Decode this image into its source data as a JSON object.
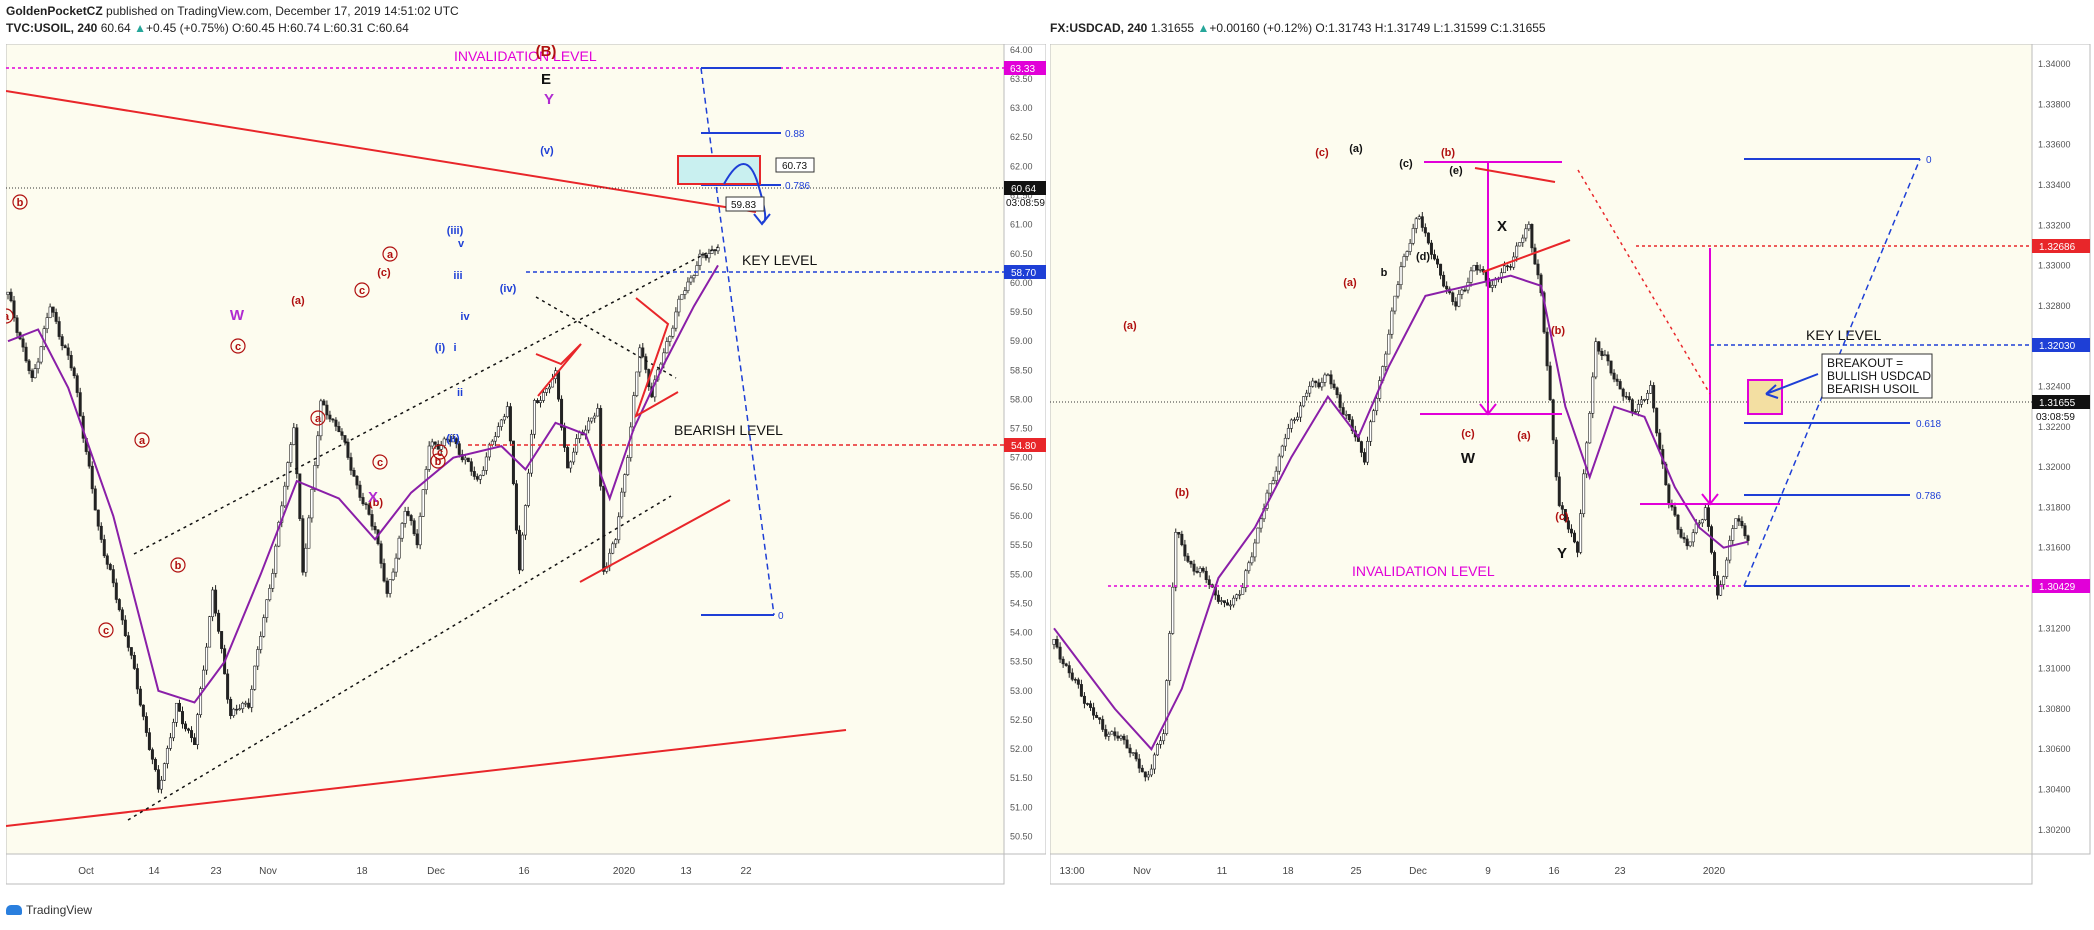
{
  "header": {
    "author": "GoldenPocketCZ",
    "published": "published on TradingView.com, December 17, 2019 14:51:02 UTC",
    "left_symbol": "TVC:USOIL, 240",
    "left_last": "60.64",
    "left_change": "+0.45 (+0.75%)",
    "left_ohlc": "O:60.45 H:60.74 L:60.31 C:60.64",
    "right_symbol": "FX:USDCAD, 240",
    "right_last": "1.31655",
    "right_change": "+0.00160 (+0.12%)",
    "right_ohlc": "O:1.31743 H:1.31749 L:1.31599 C:1.31655"
  },
  "footer": {
    "brand": "TradingView"
  },
  "colors": {
    "bg": "#fdfcef",
    "red": "#e8262a",
    "magenta": "#e100d8",
    "blue": "#1e3fd6",
    "purple": "#8a1fa8",
    "darkred": "#b01010"
  },
  "chart_data": [
    {
      "type": "candlestick",
      "symbol": "TVC:USOIL",
      "timeframe": "240",
      "x_ticks": [
        "Oct",
        "14",
        "23",
        "Nov",
        "18",
        "Dec",
        "16",
        "2020",
        "13",
        "22"
      ],
      "y_ticks": [
        "64.00",
        "63.50",
        "63.00",
        "62.50",
        "62.00",
        "61.50",
        "61.00",
        "60.50",
        "60.00",
        "59.50",
        "59.00",
        "58.50",
        "58.00",
        "57.50",
        "57.00",
        "56.50",
        "56.00",
        "55.50",
        "55.00",
        "54.50",
        "54.00",
        "53.50",
        "53.00",
        "52.50",
        "52.00",
        "51.50",
        "51.00",
        "50.50"
      ],
      "ylim": [
        50.2,
        64.1
      ],
      "price_path": [
        [
          0,
          59.8
        ],
        [
          8,
          58.3
        ],
        [
          14,
          59.6
        ],
        [
          22,
          58.4
        ],
        [
          30,
          55.8
        ],
        [
          40,
          53.8
        ],
        [
          50,
          51.3
        ],
        [
          56,
          52.7
        ],
        [
          62,
          52.1
        ],
        [
          68,
          54.7
        ],
        [
          74,
          52.6
        ],
        [
          80,
          52.8
        ],
        [
          88,
          55.1
        ],
        [
          95,
          57.6
        ],
        [
          98,
          55.0
        ],
        [
          104,
          57.9
        ],
        [
          110,
          57.5
        ],
        [
          118,
          56.2
        ],
        [
          122,
          55.8
        ],
        [
          126,
          54.6
        ],
        [
          132,
          56.1
        ],
        [
          136,
          55.6
        ],
        [
          140,
          57.2
        ],
        [
          148,
          57.3
        ],
        [
          156,
          56.6
        ],
        [
          162,
          57.4
        ],
        [
          166,
          57.9
        ],
        [
          170,
          55.1
        ],
        [
          175,
          57.9
        ],
        [
          182,
          58.4
        ],
        [
          186,
          56.8
        ],
        [
          190,
          57.4
        ],
        [
          196,
          57.8
        ],
        [
          198,
          55.1
        ],
        [
          202,
          55.6
        ],
        [
          206,
          57.1
        ],
        [
          210,
          58.9
        ],
        [
          214,
          58.1
        ],
        [
          218,
          58.8
        ],
        [
          224,
          59.8
        ],
        [
          230,
          60.4
        ],
        [
          236,
          60.64
        ]
      ],
      "ma_path": [
        [
          0,
          59.0
        ],
        [
          10,
          59.2
        ],
        [
          20,
          58.2
        ],
        [
          35,
          56.0
        ],
        [
          50,
          53.0
        ],
        [
          62,
          52.8
        ],
        [
          72,
          53.5
        ],
        [
          84,
          55.0
        ],
        [
          96,
          56.6
        ],
        [
          110,
          56.3
        ],
        [
          122,
          55.6
        ],
        [
          134,
          56.4
        ],
        [
          148,
          57.0
        ],
        [
          164,
          57.2
        ],
        [
          172,
          56.8
        ],
        [
          182,
          57.6
        ],
        [
          192,
          57.4
        ],
        [
          200,
          56.3
        ],
        [
          208,
          57.5
        ],
        [
          218,
          58.6
        ],
        [
          228,
          59.6
        ],
        [
          236,
          60.3
        ]
      ],
      "last_price": "60.64",
      "countdown": "03:08:59",
      "levels": [
        {
          "label": "INVALIDATION LEVEL",
          "value": "63.33"
        },
        {
          "label": "KEY LEVEL",
          "value": "58.70"
        },
        {
          "label": "BEARISH LEVEL",
          "value": "54.80"
        }
      ],
      "fib_labels": [
        "0.88",
        "0.786",
        "0"
      ],
      "callouts": [
        "60.73",
        "59.83"
      ],
      "waves_red": [
        "(B)",
        "b",
        "a",
        "a",
        "c",
        "(a)",
        "a",
        "c",
        "b",
        "c",
        "(c)",
        "a",
        "(b)",
        "c",
        "b",
        "c"
      ],
      "waves_black": [
        "E"
      ],
      "waves_purple": [
        "W",
        "X",
        "Y"
      ],
      "waves_blue": [
        "(v)",
        "(iii)",
        "v",
        "iii",
        "iv",
        "(iv)",
        "(i)",
        "i",
        "ii",
        "(ii)"
      ]
    },
    {
      "type": "candlestick",
      "symbol": "FX:USDCAD",
      "timeframe": "240",
      "x_ticks": [
        "13:00",
        "Nov",
        "11",
        "18",
        "25",
        "Dec",
        "9",
        "16",
        "23",
        "2020"
      ],
      "y_ticks": [
        "1.34000",
        "1.33800",
        "1.33600",
        "1.33400",
        "1.33200",
        "1.33000",
        "1.32800",
        "1.32600",
        "1.32400",
        "1.32200",
        "1.32000",
        "1.31800",
        "1.31600",
        "1.31400",
        "1.31200",
        "1.31000",
        "1.30800",
        "1.30600",
        "1.30400",
        "1.30200"
      ],
      "ylim": [
        1.3008,
        1.341
      ],
      "price_path": [
        [
          0,
          1.3112
        ],
        [
          8,
          1.309
        ],
        [
          16,
          1.307
        ],
        [
          24,
          1.3063
        ],
        [
          30,
          1.3045
        ],
        [
          36,
          1.3068
        ],
        [
          40,
          1.3168
        ],
        [
          44,
          1.3153
        ],
        [
          50,
          1.3145
        ],
        [
          56,
          1.313
        ],
        [
          62,
          1.314
        ],
        [
          68,
          1.3175
        ],
        [
          76,
          1.3215
        ],
        [
          84,
          1.324
        ],
        [
          90,
          1.3245
        ],
        [
          96,
          1.3225
        ],
        [
          102,
          1.3205
        ],
        [
          108,
          1.325
        ],
        [
          114,
          1.33
        ],
        [
          120,
          1.3325
        ],
        [
          126,
          1.3298
        ],
        [
          132,
          1.328
        ],
        [
          138,
          1.33
        ],
        [
          144,
          1.329
        ],
        [
          150,
          1.3302
        ],
        [
          156,
          1.332
        ],
        [
          160,
          1.3285
        ],
        [
          166,
          1.318
        ],
        [
          172,
          1.316
        ],
        [
          178,
          1.3262
        ],
        [
          184,
          1.3245
        ],
        [
          190,
          1.3228
        ],
        [
          196,
          1.3238
        ],
        [
          202,
          1.3182
        ],
        [
          208,
          1.316
        ],
        [
          214,
          1.318
        ],
        [
          218,
          1.3135
        ],
        [
          224,
          1.3175
        ],
        [
          228,
          1.31655
        ]
      ],
      "ma_path": [
        [
          0,
          1.312
        ],
        [
          10,
          1.31
        ],
        [
          20,
          1.308
        ],
        [
          32,
          1.306
        ],
        [
          42,
          1.309
        ],
        [
          54,
          1.3145
        ],
        [
          66,
          1.317
        ],
        [
          78,
          1.3205
        ],
        [
          90,
          1.3235
        ],
        [
          100,
          1.3215
        ],
        [
          110,
          1.325
        ],
        [
          122,
          1.3285
        ],
        [
          136,
          1.329
        ],
        [
          150,
          1.3295
        ],
        [
          160,
          1.329
        ],
        [
          168,
          1.323
        ],
        [
          176,
          1.3195
        ],
        [
          184,
          1.323
        ],
        [
          194,
          1.3225
        ],
        [
          204,
          1.319
        ],
        [
          212,
          1.317
        ],
        [
          220,
          1.316
        ],
        [
          228,
          1.3163
        ]
      ],
      "last_price": "1.31655",
      "countdown": "03:08:59",
      "levels": [
        {
          "label": "INVALIDATION LEVEL",
          "value": "1.30429"
        },
        {
          "label": "KEY LEVEL",
          "value": "1.32030"
        },
        {
          "label": "",
          "value": "1.32686"
        }
      ],
      "fib_labels": [
        "0",
        "0.618",
        "0.786"
      ],
      "annotation": [
        "BREAKOUT =",
        "BULLISH USDCAD",
        "BEARISH USOIL"
      ],
      "waves_red": [
        "(a)",
        "(b)",
        "(c)",
        "(a)",
        "(b)",
        "(c)",
        "(b)",
        "(a)",
        "(c)"
      ],
      "waves_black": [
        "(a)",
        "(c)",
        "(e)",
        "b",
        "(d)",
        "X",
        "W",
        "Y"
      ]
    }
  ]
}
